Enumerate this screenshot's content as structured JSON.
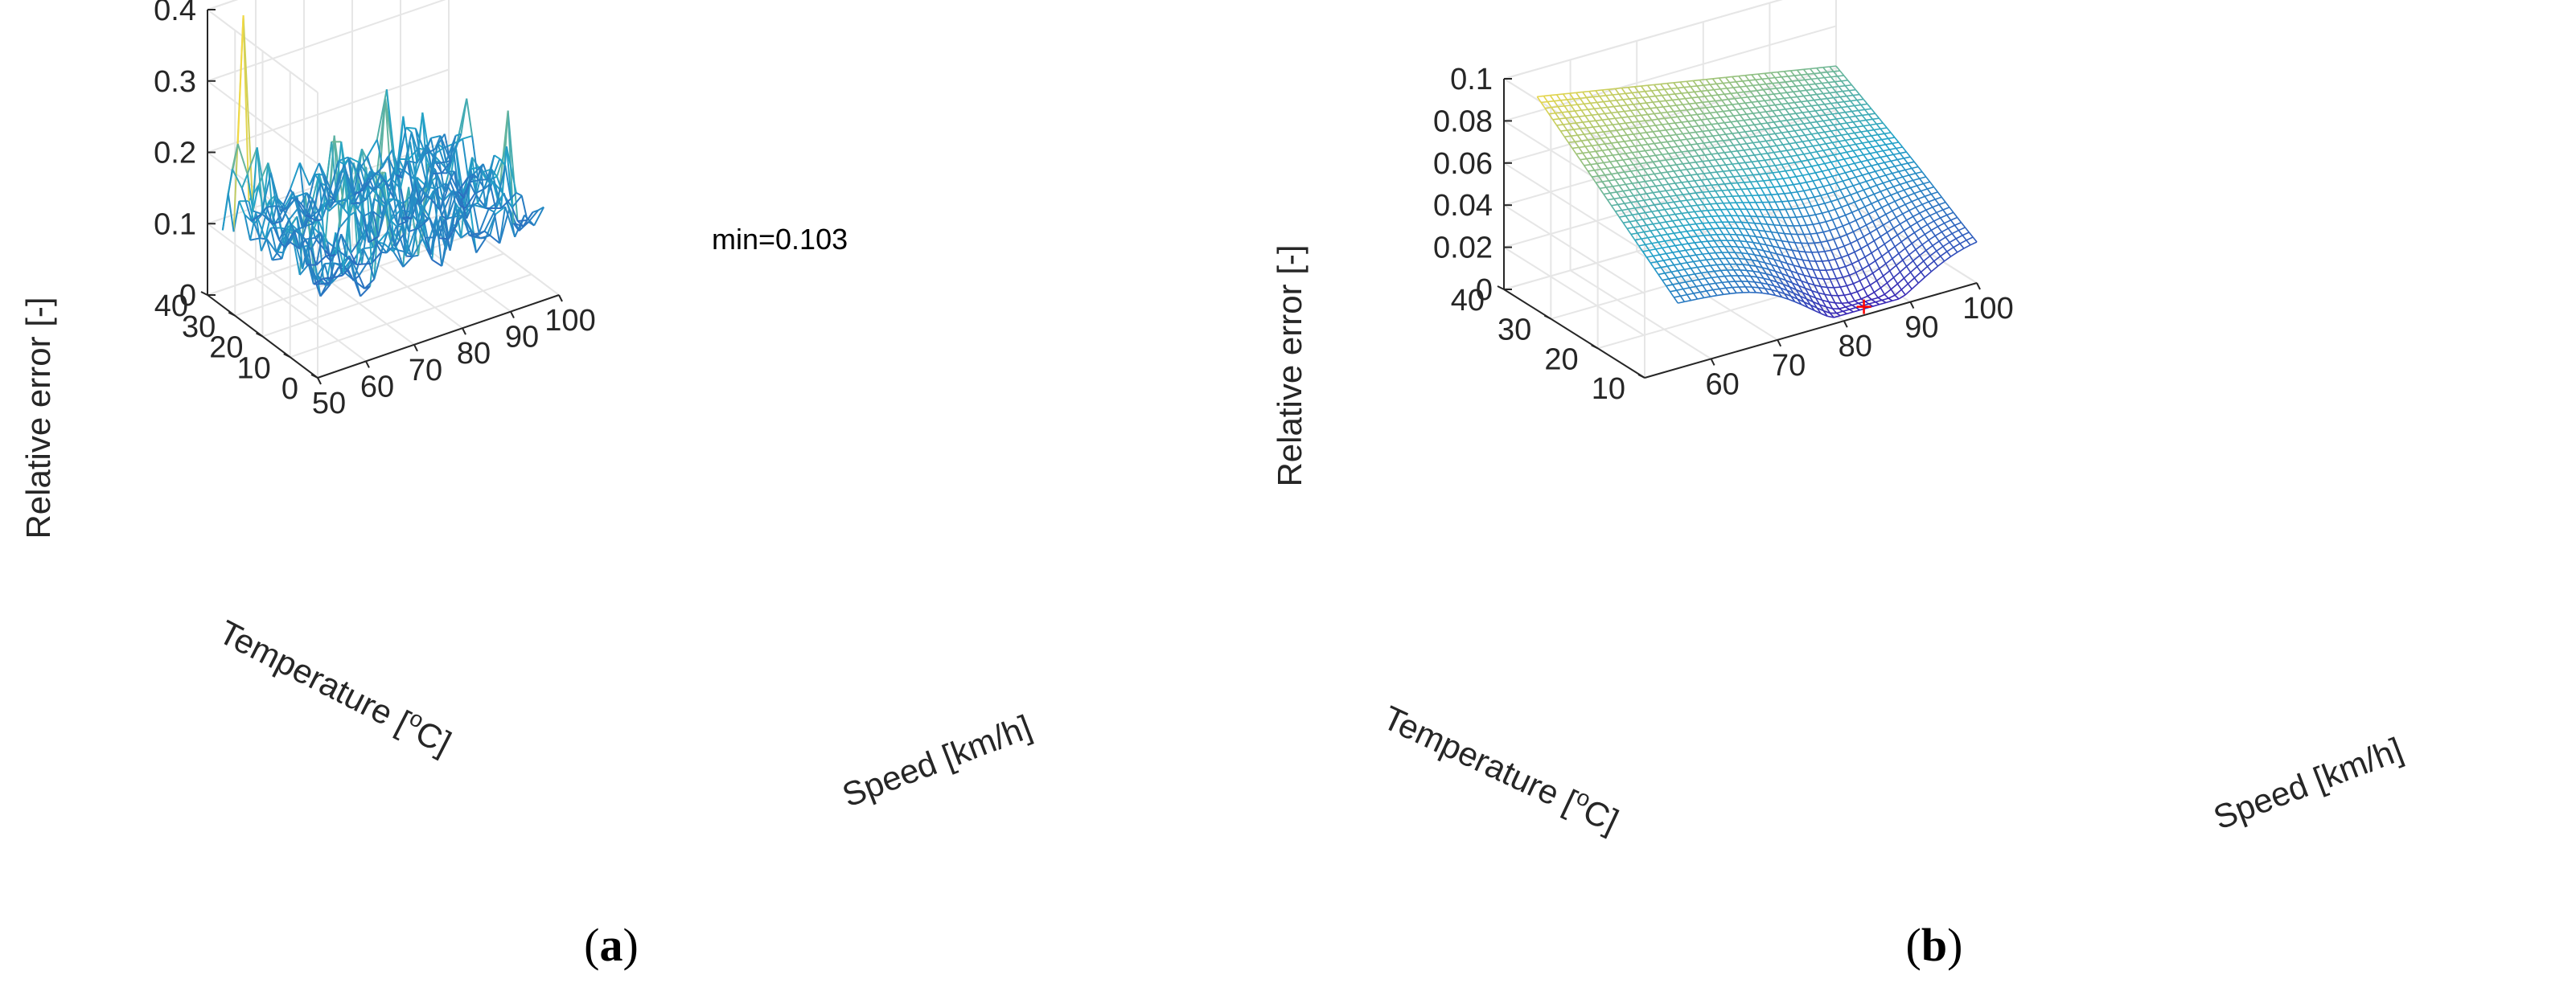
{
  "colors": {
    "low": "#3b1fb3",
    "mid": "#21a3c8",
    "high": "#f4d942",
    "min_marker": "#ff0000",
    "grid": "#e6e6e6",
    "axis": "#262626"
  },
  "chart_data": [
    {
      "panel": "a",
      "type": "mesh3d",
      "caption": {
        "open": "(",
        "letter": "a",
        "close": ")"
      },
      "zlabel": "Relative error [-]",
      "xlabel": "Speed [km/h]",
      "ylabel": "Temperature [",
      "ylabel_sup": "o",
      "ylabel_tail": "C]",
      "annotation": "min=0.103",
      "min_value": 0.103,
      "xlim": [
        50,
        100
      ],
      "ylim": [
        0,
        40
      ],
      "zlim": [
        0,
        0.4
      ],
      "xticks": [
        "50",
        "60",
        "70",
        "80",
        "90",
        "100"
      ],
      "yticks": [
        "0",
        "10",
        "20",
        "30",
        "40"
      ],
      "zticks": [
        "0",
        "0.1",
        "0.2",
        "0.3",
        "0.4"
      ],
      "grid": true
    },
    {
      "panel": "b",
      "type": "surface3d",
      "caption": {
        "open": "(",
        "letter": "b",
        "close": ")"
      },
      "zlabel": "Relative error [-]",
      "xlabel": "Speed [km/h]",
      "ylabel": "Temperature [",
      "ylabel_sup": "o",
      "ylabel_tail": "C]",
      "xlim": [
        50,
        100
      ],
      "ylim": [
        10,
        40
      ],
      "zlim": [
        0,
        0.1
      ],
      "xticks": [
        "60",
        "70",
        "80",
        "90",
        "100"
      ],
      "yticks": [
        "10",
        "20",
        "30",
        "40"
      ],
      "zticks": [
        "0",
        "0.02",
        "0.04",
        "0.06",
        "0.08",
        "0.1"
      ],
      "min_marker": {
        "speed": 83,
        "temperature": 10,
        "error": 0.004
      },
      "surface_corners": {
        "speed55_temp40": 0.087,
        "speed100_temp40": 0.061,
        "speed55_temp10": 0.031,
        "speed100_temp10": 0.022
      },
      "grid": true
    }
  ]
}
